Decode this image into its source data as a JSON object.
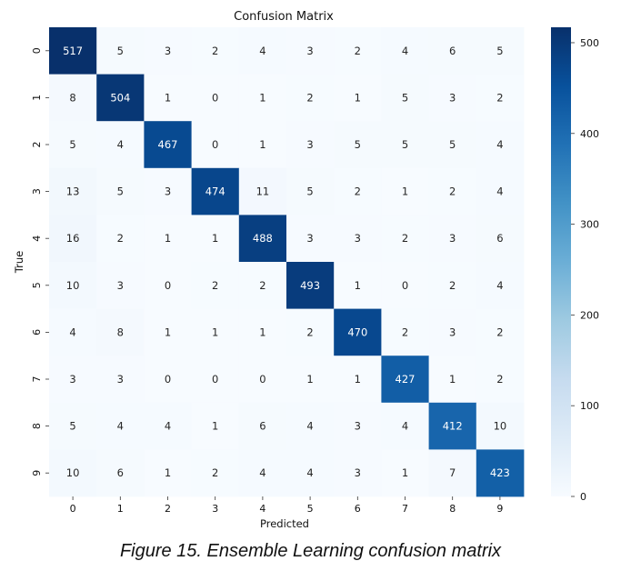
{
  "chart_data": {
    "type": "heatmap",
    "title": "Confusion Matrix",
    "xlabel": "Predicted",
    "ylabel": "True",
    "x_categories": [
      "0",
      "1",
      "2",
      "3",
      "4",
      "5",
      "6",
      "7",
      "8",
      "9"
    ],
    "y_categories": [
      "0",
      "1",
      "2",
      "3",
      "4",
      "5",
      "6",
      "7",
      "8",
      "9"
    ],
    "values": [
      [
        517,
        5,
        3,
        2,
        4,
        3,
        2,
        4,
        6,
        5
      ],
      [
        8,
        504,
        1,
        0,
        1,
        2,
        1,
        5,
        3,
        2
      ],
      [
        5,
        4,
        467,
        0,
        1,
        3,
        5,
        5,
        5,
        4
      ],
      [
        13,
        5,
        3,
        474,
        11,
        5,
        2,
        1,
        2,
        4
      ],
      [
        16,
        2,
        1,
        1,
        488,
        3,
        3,
        2,
        3,
        6
      ],
      [
        10,
        3,
        0,
        2,
        2,
        493,
        1,
        0,
        2,
        4
      ],
      [
        4,
        8,
        1,
        1,
        1,
        2,
        470,
        2,
        3,
        2
      ],
      [
        3,
        3,
        0,
        0,
        0,
        1,
        1,
        427,
        1,
        2
      ],
      [
        5,
        4,
        4,
        1,
        6,
        4,
        3,
        4,
        412,
        10
      ],
      [
        10,
        6,
        1,
        2,
        4,
        4,
        3,
        1,
        7,
        423
      ]
    ],
    "colorbar": {
      "colormap": "Blues",
      "range": [
        0,
        517
      ],
      "ticks": [
        0,
        100,
        200,
        300,
        400,
        500
      ]
    },
    "annotations": "cell values printed in each cell"
  },
  "caption": "Figure 15. Ensemble Learning confusion matrix"
}
